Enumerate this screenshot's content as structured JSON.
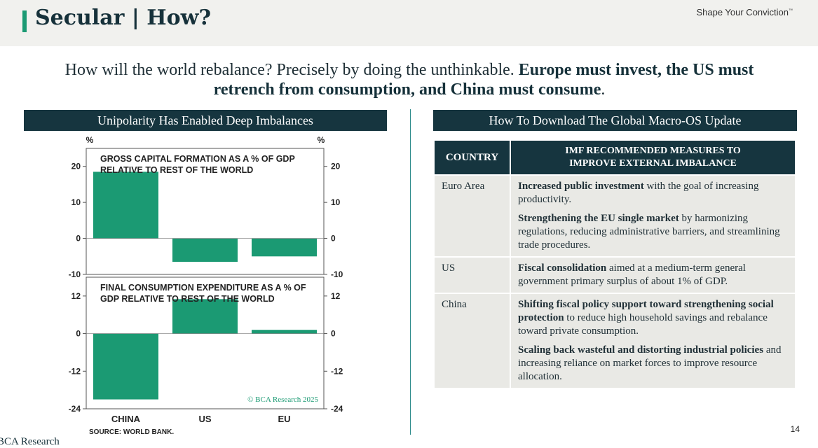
{
  "header": {
    "title": "Secular | How?",
    "tagline": "Shape Your Conviction",
    "tagline_mark": "™"
  },
  "subtitle": {
    "plain": "How will the world rebalance? Precisely by doing the unthinkable. ",
    "bold": "Europe must invest, the US must retrench from consumption, and China must consume",
    "end": "."
  },
  "left_panel": {
    "title": "Unipolarity Has Enabled Deep Imbalances"
  },
  "right_panel": {
    "title": "How To Download The Global Macro-OS Update"
  },
  "chart_data": [
    {
      "type": "bar",
      "title": "GROSS CAPITAL FORMATION AS A % OF GDP",
      "title2": "RELATIVE TO REST OF THE WORLD",
      "unit_left": "%",
      "unit_right": "%",
      "categories": [
        "CHINA",
        "US",
        "EU"
      ],
      "values": [
        18.5,
        -6.5,
        -5
      ],
      "ylim": [
        -10,
        25
      ],
      "yticks": [
        "20",
        "10",
        "0",
        "-10"
      ],
      "color": "#1b9a73"
    },
    {
      "type": "bar",
      "title": "FINAL CONSUMPTION EXPENDITURE AS A % OF",
      "title2": "GDP RELATIVE TO REST OF THE WORLD",
      "categories": [
        "CHINA",
        "US",
        "EU"
      ],
      "values": [
        -21,
        11,
        1.2
      ],
      "ylim": [
        -24,
        18
      ],
      "yticks": [
        "12",
        "0",
        "-12",
        "-24"
      ],
      "color": "#1b9a73",
      "copyright": "© BCA Research 2025"
    }
  ],
  "source": "SOURCE: WORLD BANK.",
  "table": {
    "headers": [
      "COUNTRY",
      "IMF RECOMMENDED MEASURES TO",
      "IMPROVE EXTERNAL IMBALANCE"
    ],
    "rows": [
      {
        "country": "Euro Area",
        "items": [
          {
            "bold": "Increased public investment",
            "rest": " with the goal of increasing productivity."
          },
          {
            "bold": "Strengthening the EU single market",
            "rest": " by harmonizing regulations, reducing administrative barriers, and streamlining trade procedures."
          }
        ]
      },
      {
        "country": "US",
        "items": [
          {
            "bold": "Fiscal consolidation",
            "rest": " aimed at a medium-term general government primary surplus of about 1% of GDP."
          }
        ]
      },
      {
        "country": "China",
        "items": [
          {
            "bold": "Shifting fiscal policy support toward strengthening social protection",
            "rest": " to reduce high household savings and rebalance toward private consumption."
          },
          {
            "bold": "Scaling back wasteful and distorting industrial policies",
            "rest": " and increasing reliance on market forces to improve resource allocation."
          }
        ]
      }
    ]
  },
  "footer": {
    "page_number": "14",
    "brand": "BCA Research"
  }
}
